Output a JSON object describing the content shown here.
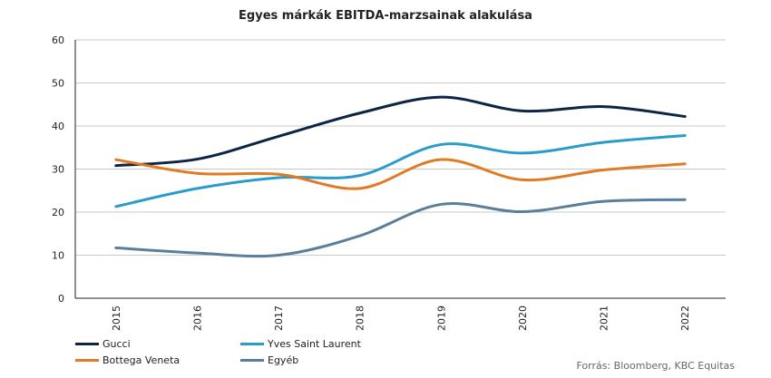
{
  "chart_data": {
    "type": "line",
    "title": "Egyes márkák EBITDA-marzsainak alakulása",
    "xlabel": "",
    "ylabel": "",
    "categories": [
      "2015",
      "2016",
      "2017",
      "2018",
      "2019",
      "2020",
      "2021",
      "2022"
    ],
    "ylim": [
      0,
      60
    ],
    "yticks": [
      "0",
      "10",
      "20",
      "30",
      "40",
      "50",
      "60"
    ],
    "grid": true,
    "legend": "bottom-left",
    "series": [
      {
        "name": "Gucci",
        "color": "#0d2545",
        "values": [
          30.8,
          32.3,
          37.6,
          43.0,
          46.7,
          43.5,
          44.5,
          42.2
        ]
      },
      {
        "name": "Yves Saint Laurent",
        "color": "#2a9cc9",
        "values": [
          21.3,
          25.5,
          28.0,
          28.5,
          35.7,
          33.7,
          36.2,
          37.8
        ]
      },
      {
        "name": "Bottega Veneta",
        "color": "#e07b24",
        "values": [
          32.2,
          29.0,
          28.8,
          25.5,
          32.2,
          27.5,
          29.8,
          31.2
        ]
      },
      {
        "name": "Egyéb",
        "color": "#5a7f9c",
        "values": [
          11.7,
          10.5,
          10.0,
          14.5,
          21.8,
          20.1,
          22.5,
          22.9
        ]
      }
    ]
  },
  "source": "Forrás: Bloomberg,  KBC Equitas"
}
